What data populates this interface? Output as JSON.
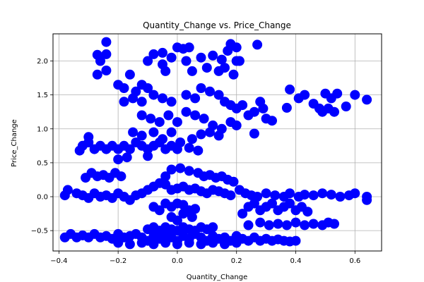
{
  "chart_data": {
    "type": "scatter",
    "title": "Quantity_Change vs. Price_Change",
    "xlabel": "Quantity_Change",
    "ylabel": "Price_Change",
    "xlim": [
      -0.42,
      0.69
    ],
    "ylim": [
      -0.8,
      2.4
    ],
    "xticks": [
      -0.4,
      -0.2,
      0.0,
      0.2,
      0.4,
      0.6
    ],
    "xtick_labels": [
      "−0.4",
      "−0.2",
      "0.0",
      "0.2",
      "0.4",
      "0.6"
    ],
    "yticks": [
      -0.5,
      0.0,
      0.5,
      1.0,
      1.5,
      2.0
    ],
    "ytick_labels": [
      "−0.5",
      "0.0",
      "0.5",
      "1.0",
      "1.5",
      "2.0"
    ],
    "grid": true,
    "marker_color": "#0000ff",
    "series": [
      {
        "points": [
          [
            -0.24,
            2.28
          ],
          [
            -0.27,
            2.09
          ],
          [
            -0.24,
            2.1
          ],
          [
            -0.26,
            2.0
          ],
          [
            -0.24,
            1.86
          ],
          [
            -0.27,
            1.8
          ],
          [
            -0.08,
            2.1
          ],
          [
            -0.05,
            2.12
          ],
          [
            -0.02,
            2.05
          ],
          [
            0.0,
            2.2
          ],
          [
            0.02,
            2.18
          ],
          [
            0.04,
            2.2
          ],
          [
            -0.1,
            2.0
          ],
          [
            -0.05,
            1.95
          ],
          [
            0.03,
            2.0
          ],
          [
            0.08,
            2.05
          ],
          [
            0.12,
            2.08
          ],
          [
            0.15,
            2.02
          ],
          [
            0.18,
            2.25
          ],
          [
            0.2,
            2.2
          ],
          [
            0.17,
            2.15
          ],
          [
            0.2,
            2.0
          ],
          [
            0.21,
            2.0
          ],
          [
            0.27,
            2.24
          ],
          [
            0.1,
            1.9
          ],
          [
            0.14,
            1.85
          ],
          [
            0.16,
            1.9
          ],
          [
            0.19,
            1.8
          ],
          [
            0.05,
            1.85
          ],
          [
            -0.04,
            1.85
          ],
          [
            -0.2,
            1.65
          ],
          [
            -0.18,
            1.6
          ],
          [
            -0.16,
            1.8
          ],
          [
            -0.14,
            1.55
          ],
          [
            -0.12,
            1.65
          ],
          [
            -0.1,
            1.6
          ],
          [
            -0.18,
            1.4
          ],
          [
            -0.15,
            1.45
          ],
          [
            -0.12,
            1.4
          ],
          [
            -0.08,
            1.5
          ],
          [
            -0.05,
            1.45
          ],
          [
            -0.02,
            1.4
          ],
          [
            0.03,
            1.5
          ],
          [
            0.06,
            1.45
          ],
          [
            0.08,
            1.6
          ],
          [
            0.11,
            1.55
          ],
          [
            0.14,
            1.5
          ],
          [
            0.16,
            1.4
          ],
          [
            0.18,
            1.35
          ],
          [
            0.2,
            1.3
          ],
          [
            0.22,
            1.35
          ],
          [
            0.24,
            1.2
          ],
          [
            0.26,
            1.25
          ],
          [
            0.28,
            1.4
          ],
          [
            0.29,
            1.3
          ],
          [
            0.3,
            1.15
          ],
          [
            0.32,
            1.12
          ],
          [
            0.37,
            1.31
          ],
          [
            0.38,
            1.58
          ],
          [
            0.41,
            1.45
          ],
          [
            0.43,
            1.5
          ],
          [
            0.46,
            1.37
          ],
          [
            0.48,
            1.3
          ],
          [
            0.49,
            1.25
          ],
          [
            0.5,
            1.52
          ],
          [
            0.51,
            1.3
          ],
          [
            0.52,
            1.45
          ],
          [
            0.53,
            1.25
          ],
          [
            0.54,
            1.52
          ],
          [
            0.57,
            1.33
          ],
          [
            0.6,
            1.5
          ],
          [
            0.64,
            1.43
          ],
          [
            -0.12,
            1.2
          ],
          [
            -0.09,
            1.15
          ],
          [
            -0.06,
            1.1
          ],
          [
            -0.03,
            1.2
          ],
          [
            0.0,
            1.1
          ],
          [
            0.03,
            1.25
          ],
          [
            0.06,
            1.2
          ],
          [
            0.09,
            1.15
          ],
          [
            0.12,
            1.05
          ],
          [
            0.15,
            1.0
          ],
          [
            0.18,
            1.1
          ],
          [
            0.2,
            1.05
          ],
          [
            0.11,
            0.95
          ],
          [
            0.14,
            0.9
          ],
          [
            0.08,
            0.92
          ],
          [
            0.05,
            0.85
          ],
          [
            0.26,
            0.93
          ],
          [
            -0.15,
            0.95
          ],
          [
            -0.12,
            0.9
          ],
          [
            -0.08,
            0.95
          ],
          [
            -0.05,
            0.85
          ],
          [
            -0.02,
            0.95
          ],
          [
            0.01,
            0.8
          ],
          [
            -0.32,
            0.75
          ],
          [
            -0.3,
            0.8
          ],
          [
            -0.28,
            0.7
          ],
          [
            -0.26,
            0.75
          ],
          [
            -0.24,
            0.7
          ],
          [
            -0.22,
            0.75
          ],
          [
            -0.2,
            0.7
          ],
          [
            -0.18,
            0.75
          ],
          [
            -0.16,
            0.7
          ],
          [
            -0.14,
            0.8
          ],
          [
            -0.12,
            0.75
          ],
          [
            -0.1,
            0.7
          ],
          [
            -0.08,
            0.75
          ],
          [
            -0.06,
            0.8
          ],
          [
            -0.04,
            0.7
          ],
          [
            -0.02,
            0.75
          ],
          [
            0.0,
            0.7
          ],
          [
            0.04,
            0.72
          ],
          [
            0.07,
            0.68
          ],
          [
            -0.3,
            0.88
          ],
          [
            -0.33,
            0.68
          ],
          [
            -0.2,
            0.55
          ],
          [
            -0.17,
            0.58
          ],
          [
            -0.1,
            0.6
          ],
          [
            -0.31,
            0.28
          ],
          [
            -0.29,
            0.35
          ],
          [
            -0.27,
            0.3
          ],
          [
            -0.25,
            0.32
          ],
          [
            -0.23,
            0.28
          ],
          [
            -0.21,
            0.35
          ],
          [
            -0.19,
            0.3
          ],
          [
            -0.02,
            0.4
          ],
          [
            0.01,
            0.42
          ],
          [
            0.04,
            0.38
          ],
          [
            0.07,
            0.35
          ],
          [
            0.09,
            0.3
          ],
          [
            0.11,
            0.32
          ],
          [
            0.13,
            0.28
          ],
          [
            0.15,
            0.3
          ],
          [
            0.17,
            0.25
          ],
          [
            0.19,
            0.22
          ],
          [
            -0.04,
            0.3
          ],
          [
            -0.38,
            0.02
          ],
          [
            -0.37,
            0.1
          ],
          [
            -0.34,
            0.05
          ],
          [
            -0.32,
            0.02
          ],
          [
            -0.3,
            -0.02
          ],
          [
            -0.28,
            0.05
          ],
          [
            -0.26,
            0.0
          ],
          [
            -0.24,
            0.02
          ],
          [
            -0.22,
            -0.02
          ],
          [
            -0.2,
            0.05
          ],
          [
            -0.18,
            0.0
          ],
          [
            -0.16,
            -0.05
          ],
          [
            -0.14,
            0.02
          ],
          [
            -0.12,
            0.05
          ],
          [
            -0.1,
            0.1
          ],
          [
            -0.08,
            0.15
          ],
          [
            -0.06,
            0.2
          ],
          [
            -0.04,
            0.18
          ],
          [
            -0.02,
            0.1
          ],
          [
            0.0,
            0.12
          ],
          [
            0.02,
            0.15
          ],
          [
            0.04,
            0.1
          ],
          [
            0.06,
            0.12
          ],
          [
            0.08,
            0.08
          ],
          [
            0.1,
            0.05
          ],
          [
            0.12,
            0.1
          ],
          [
            0.14,
            0.08
          ],
          [
            0.16,
            0.05
          ],
          [
            0.18,
            0.02
          ],
          [
            0.21,
            0.1
          ],
          [
            0.23,
            0.05
          ],
          [
            0.25,
            0.02
          ],
          [
            0.27,
            0.0
          ],
          [
            0.3,
            0.05
          ],
          [
            0.33,
            0.02
          ],
          [
            0.36,
            0.0
          ],
          [
            0.38,
            0.05
          ],
          [
            0.41,
            0.0
          ],
          [
            0.43,
            0.03
          ],
          [
            0.46,
            0.02
          ],
          [
            0.49,
            0.05
          ],
          [
            0.52,
            0.03
          ],
          [
            0.55,
            0.0
          ],
          [
            0.58,
            0.02
          ],
          [
            0.6,
            0.05
          ],
          [
            0.64,
            0.0
          ],
          [
            0.64,
            -0.05
          ],
          [
            -0.04,
            -0.1
          ],
          [
            -0.02,
            -0.15
          ],
          [
            0.0,
            -0.1
          ],
          [
            0.02,
            -0.12
          ],
          [
            0.04,
            -0.2
          ],
          [
            0.06,
            -0.18
          ],
          [
            -0.06,
            -0.2
          ],
          [
            -0.08,
            -0.15
          ],
          [
            -0.02,
            -0.3
          ],
          [
            0.0,
            -0.35
          ],
          [
            0.02,
            -0.25
          ],
          [
            0.05,
            -0.3
          ],
          [
            0.22,
            -0.25
          ],
          [
            0.24,
            -0.15
          ],
          [
            0.26,
            -0.1
          ],
          [
            0.28,
            -0.2
          ],
          [
            0.3,
            -0.15
          ],
          [
            0.32,
            -0.1
          ],
          [
            0.34,
            -0.2
          ],
          [
            0.36,
            -0.15
          ],
          [
            0.38,
            -0.1
          ],
          [
            0.4,
            -0.2
          ],
          [
            0.42,
            -0.15
          ],
          [
            0.44,
            -0.22
          ],
          [
            0.24,
            -0.42
          ],
          [
            0.28,
            -0.38
          ],
          [
            0.31,
            -0.42
          ],
          [
            0.34,
            -0.4
          ],
          [
            0.37,
            -0.42
          ],
          [
            0.4,
            -0.38
          ],
          [
            0.43,
            -0.42
          ],
          [
            0.46,
            -0.4
          ],
          [
            0.49,
            -0.42
          ],
          [
            0.51,
            -0.38
          ],
          [
            0.53,
            -0.4
          ],
          [
            -0.38,
            -0.6
          ],
          [
            -0.36,
            -0.55
          ],
          [
            -0.34,
            -0.6
          ],
          [
            -0.32,
            -0.57
          ],
          [
            -0.3,
            -0.6
          ],
          [
            -0.28,
            -0.55
          ],
          [
            -0.26,
            -0.6
          ],
          [
            -0.24,
            -0.58
          ],
          [
            -0.22,
            -0.62
          ],
          [
            -0.2,
            -0.55
          ],
          [
            -0.18,
            -0.6
          ],
          [
            -0.16,
            -0.58
          ],
          [
            -0.14,
            -0.55
          ],
          [
            -0.12,
            -0.6
          ],
          [
            -0.1,
            -0.65
          ],
          [
            -0.08,
            -0.58
          ],
          [
            -0.06,
            -0.62
          ],
          [
            -0.04,
            -0.55
          ],
          [
            -0.02,
            -0.6
          ],
          [
            0.0,
            -0.65
          ],
          [
            0.02,
            -0.58
          ],
          [
            0.04,
            -0.62
          ],
          [
            0.06,
            -0.55
          ],
          [
            0.08,
            -0.6
          ],
          [
            0.1,
            -0.65
          ],
          [
            0.12,
            -0.58
          ],
          [
            0.14,
            -0.62
          ],
          [
            0.16,
            -0.6
          ],
          [
            0.18,
            -0.65
          ],
          [
            0.2,
            -0.58
          ],
          [
            0.22,
            -0.62
          ],
          [
            0.24,
            -0.65
          ],
          [
            0.26,
            -0.6
          ],
          [
            0.28,
            -0.65
          ],
          [
            0.3,
            -0.62
          ],
          [
            0.32,
            -0.65
          ],
          [
            0.34,
            -0.63
          ],
          [
            0.36,
            -0.65
          ],
          [
            0.38,
            -0.66
          ],
          [
            0.4,
            -0.65
          ],
          [
            -0.2,
            -0.68
          ],
          [
            -0.16,
            -0.7
          ],
          [
            -0.12,
            -0.68
          ],
          [
            -0.08,
            -0.7
          ],
          [
            -0.04,
            -0.68
          ],
          [
            0.0,
            -0.7
          ],
          [
            0.04,
            -0.68
          ],
          [
            0.08,
            -0.7
          ],
          [
            0.12,
            -0.68
          ],
          [
            0.16,
            -0.7
          ],
          [
            0.2,
            -0.68
          ],
          [
            -0.04,
            -0.45
          ],
          [
            -0.02,
            -0.48
          ],
          [
            0.0,
            -0.5
          ],
          [
            0.02,
            -0.45
          ],
          [
            0.04,
            -0.48
          ],
          [
            0.06,
            -0.5
          ],
          [
            0.08,
            -0.45
          ],
          [
            0.1,
            -0.48
          ],
          [
            0.12,
            -0.45
          ],
          [
            -0.06,
            -0.5
          ],
          [
            -0.08,
            -0.45
          ],
          [
            -0.1,
            -0.48
          ]
        ]
      }
    ]
  }
}
